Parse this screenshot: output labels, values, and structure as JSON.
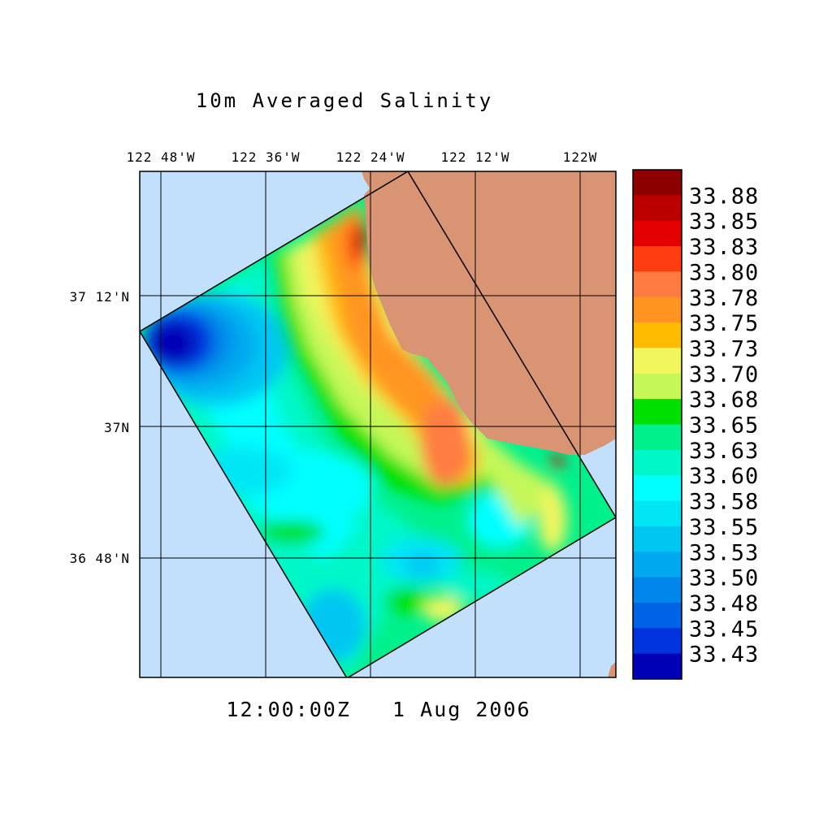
{
  "title": "10m Averaged Salinity",
  "timestamp": "12:00:00Z   1 Aug 2006",
  "lon_ticks": [
    "122 48'W",
    "122 36'W",
    "122 24'W",
    "122 12'W",
    "122W"
  ],
  "lat_ticks": [
    "37 12'N",
    "37N",
    "36 48'N"
  ],
  "colors": {
    "ocean": "#c2e0fb",
    "land": "#d99474"
  },
  "colorbar": {
    "labels": [
      "33.88",
      "33.85",
      "33.83",
      "33.80",
      "33.78",
      "33.75",
      "33.73",
      "33.70",
      "33.68",
      "33.65",
      "33.63",
      "33.60",
      "33.58",
      "33.55",
      "33.53",
      "33.50",
      "33.48",
      "33.45",
      "33.43"
    ],
    "colors": [
      "#8c0000",
      "#bb0000",
      "#e40000",
      "#ff3d10",
      "#ff7b42",
      "#ff9520",
      "#ffbb00",
      "#f1f55e",
      "#c5f758",
      "#00e000",
      "#00f08c",
      "#00f7c8",
      "#00ffff",
      "#00e6f5",
      "#00c6f2",
      "#00a8ef",
      "#0086ea",
      "#0063e6",
      "#0033dd",
      "#0000b6"
    ]
  }
}
